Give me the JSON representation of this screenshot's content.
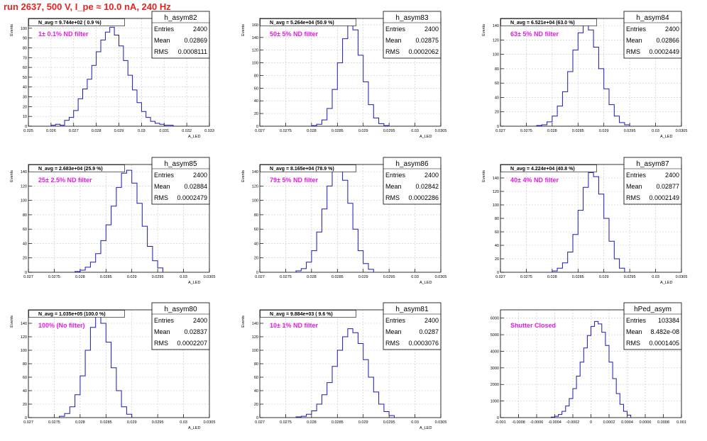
{
  "page_title": "run 2637,   500 V, I_pe ≈ 10.0 nA, 240 Hz",
  "colors": {
    "title": "#e8231f",
    "histogram": "#1a1ab3",
    "annotation": "#e51be5",
    "grid": "#c8c8c8"
  },
  "chart_data": [
    {
      "type": "histogram",
      "ylabel": "Events",
      "xlabel": "A_LED",
      "xlim": [
        0.025,
        0.033
      ],
      "ylim": [
        0,
        110
      ],
      "xticks": [
        0.025,
        0.026,
        0.027,
        0.028,
        0.029,
        0.03,
        0.031,
        0.032,
        0.033
      ],
      "xtick_labels": [
        "0.025",
        "0.026",
        "0.027",
        "0.028",
        "0.029",
        "0.03",
        "0.031",
        "0.032",
        "0.033"
      ],
      "yticks": [
        0,
        10,
        20,
        30,
        40,
        50,
        60,
        70,
        80,
        90,
        100
      ],
      "ytick_labels": [
        "0",
        "10",
        "20",
        "30",
        "40",
        "50",
        "60",
        "70",
        "80",
        "90",
        "100"
      ],
      "grid": true,
      "n_avg_label": "N_avg = 9.744e+02 ( 0.9 %)",
      "filter_label": "1± 0.1% ND filter",
      "stats": {
        "name": "h_asym82",
        "entries": "2400",
        "mean": "0.02869",
        "rms": "0.0008111"
      },
      "series": [
        {
          "x": [
            0.0261,
            0.0263,
            0.0265,
            0.0267,
            0.0269,
            0.0271,
            0.0273,
            0.0275,
            0.0277,
            0.0279,
            0.0281,
            0.0283,
            0.0285,
            0.0287,
            0.0289,
            0.0291,
            0.0293,
            0.0295,
            0.0297,
            0.0299,
            0.0301,
            0.0303,
            0.0305,
            0.0307,
            0.0309,
            0.0311,
            0.0313
          ],
          "values": [
            1,
            2,
            1,
            6,
            9,
            16,
            28,
            38,
            48,
            62,
            76,
            88,
            96,
            101,
            93,
            82,
            67,
            52,
            37,
            24,
            15,
            9,
            5,
            3,
            2,
            1,
            1
          ]
        }
      ]
    },
    {
      "type": "histogram",
      "ylabel": "Events",
      "xlabel": "A_LED",
      "xlim": [
        0.027,
        0.0305
      ],
      "ylim": [
        0,
        170
      ],
      "xticks": [
        0.027,
        0.0275,
        0.028,
        0.0285,
        0.029,
        0.0295,
        0.03,
        0.0305
      ],
      "xtick_labels": [
        "0.027",
        "0.0275",
        "0.028",
        "0.0285",
        "0.029",
        "0.0295",
        "0.03",
        "0.0305"
      ],
      "yticks": [
        0,
        20,
        40,
        60,
        80,
        100,
        120,
        140,
        160
      ],
      "ytick_labels": [
        "0",
        "20",
        "40",
        "60",
        "80",
        "100",
        "120",
        "140",
        "160"
      ],
      "grid": true,
      "n_avg_label": "N_avg = 5.264e+04 (50.9 %)",
      "filter_label": "50± 5% ND filter",
      "stats": {
        "name": "h_asym83",
        "entries": "2400",
        "mean": "0.02875",
        "rms": "0.0002062"
      },
      "series": [
        {
          "x": [
            0.02805,
            0.02815,
            0.02825,
            0.02835,
            0.02845,
            0.02855,
            0.02865,
            0.02875,
            0.02885,
            0.02895,
            0.02905,
            0.02915,
            0.02925,
            0.02935,
            0.02945
          ],
          "values": [
            1,
            3,
            10,
            28,
            58,
            100,
            138,
            160,
            152,
            112,
            70,
            34,
            13,
            4,
            1
          ]
        }
      ]
    },
    {
      "type": "histogram",
      "ylabel": "Events",
      "xlabel": "A_LED",
      "xlim": [
        0.027,
        0.0305
      ],
      "ylim": [
        0,
        150
      ],
      "xticks": [
        0.027,
        0.0275,
        0.028,
        0.0285,
        0.029,
        0.0295,
        0.03,
        0.0305
      ],
      "xtick_labels": [
        "0.027",
        "0.0275",
        "0.028",
        "0.0285",
        "0.029",
        "0.0295",
        "0.03",
        "0.0305"
      ],
      "yticks": [
        0,
        20,
        40,
        60,
        80,
        100,
        120,
        140
      ],
      "ytick_labels": [
        "0",
        "20",
        "40",
        "60",
        "80",
        "100",
        "120",
        "140"
      ],
      "grid": true,
      "n_avg_label": "N_avg = 6.521e+04 (63.0 %)",
      "filter_label": "63± 5% ND filter",
      "stats": {
        "name": "h_asym84",
        "entries": "2400",
        "mean": "0.02866",
        "rms": "0.0002449"
      },
      "series": [
        {
          "x": [
            0.02775,
            0.02785,
            0.02795,
            0.02805,
            0.02815,
            0.02825,
            0.02835,
            0.02845,
            0.02855,
            0.02865,
            0.02875,
            0.02885,
            0.02895,
            0.02905,
            0.02915,
            0.02925,
            0.02935,
            0.02945
          ],
          "values": [
            1,
            2,
            6,
            14,
            28,
            48,
            76,
            106,
            130,
            142,
            134,
            110,
            80,
            52,
            30,
            14,
            5,
            2
          ]
        }
      ]
    },
    {
      "type": "histogram",
      "ylabel": "Events",
      "xlabel": "A_LED",
      "xlim": [
        0.027,
        0.0305
      ],
      "ylim": [
        0,
        150
      ],
      "xticks": [
        0.027,
        0.0275,
        0.028,
        0.0285,
        0.029,
        0.0295,
        0.03,
        0.0305
      ],
      "xtick_labels": [
        "0.027",
        "0.0275",
        "0.028",
        "0.0285",
        "0.029",
        "0.0295",
        "0.03",
        "0.0305"
      ],
      "yticks": [
        0,
        20,
        40,
        60,
        80,
        100,
        120,
        140
      ],
      "ytick_labels": [
        "0",
        "20",
        "40",
        "60",
        "80",
        "100",
        "120",
        "140"
      ],
      "grid": true,
      "n_avg_label": "N_avg = 2.683e+04 (25.9 %)",
      "filter_label": "25± 2.5% ND filter",
      "stats": {
        "name": "h_asym85",
        "entries": "2400",
        "mean": "0.02884",
        "rms": "0.0002479"
      },
      "series": [
        {
          "x": [
            0.02795,
            0.02805,
            0.02815,
            0.02825,
            0.02835,
            0.02845,
            0.02855,
            0.02865,
            0.02875,
            0.02885,
            0.02895,
            0.02905,
            0.02915,
            0.02925,
            0.02935,
            0.02945,
            0.02955
          ],
          "values": [
            1,
            3,
            7,
            14,
            26,
            44,
            66,
            92,
            118,
            138,
            142,
            124,
            96,
            64,
            36,
            16,
            6
          ]
        }
      ]
    },
    {
      "type": "histogram",
      "ylabel": "Events",
      "xlabel": "A_LED",
      "xlim": [
        0.027,
        0.0305
      ],
      "ylim": [
        0,
        150
      ],
      "xticks": [
        0.027,
        0.0275,
        0.028,
        0.0285,
        0.029,
        0.0295,
        0.03,
        0.0305
      ],
      "xtick_labels": [
        "0.027",
        "0.0275",
        "0.028",
        "0.0285",
        "0.029",
        "0.0295",
        "0.03",
        "0.0305"
      ],
      "yticks": [
        0,
        20,
        40,
        60,
        80,
        100,
        120,
        140
      ],
      "ytick_labels": [
        "0",
        "20",
        "40",
        "60",
        "80",
        "100",
        "120",
        "140"
      ],
      "grid": true,
      "n_avg_label": "N_avg = 8.165e+04 (78.9 %)",
      "filter_label": "79± 5% ND filter",
      "stats": {
        "name": "h_asym86",
        "entries": "2400",
        "mean": "0.02842",
        "rms": "0.0002286"
      },
      "series": [
        {
          "x": [
            0.02775,
            0.02785,
            0.02795,
            0.02805,
            0.02815,
            0.02825,
            0.02835,
            0.02845,
            0.02855,
            0.02865,
            0.02875,
            0.02885,
            0.02895,
            0.02905,
            0.02915
          ],
          "values": [
            2,
            5,
            14,
            30,
            56,
            88,
            120,
            142,
            146,
            128,
            96,
            60,
            30,
            12,
            4
          ]
        }
      ]
    },
    {
      "type": "histogram",
      "ylabel": "Events",
      "xlabel": "A_LED",
      "xlim": [
        0.027,
        0.0305
      ],
      "ylim": [
        0,
        160
      ],
      "xticks": [
        0.027,
        0.0275,
        0.028,
        0.0285,
        0.029,
        0.0295,
        0.03,
        0.0305
      ],
      "xtick_labels": [
        "0.027",
        "0.0275",
        "0.028",
        "0.0285",
        "0.029",
        "0.0295",
        "0.03",
        "0.0305"
      ],
      "yticks": [
        0,
        20,
        40,
        60,
        80,
        100,
        120,
        140
      ],
      "ytick_labels": [
        "0",
        "20",
        "40",
        "60",
        "80",
        "100",
        "120",
        "140"
      ],
      "grid": true,
      "n_avg_label": "N_avg = 4.224e+04 (40.8 %)",
      "filter_label": "40± 4% ND filter",
      "stats": {
        "name": "h_asym87",
        "entries": "2400",
        "mean": "0.02877",
        "rms": "0.0002149"
      },
      "series": [
        {
          "x": [
            0.02805,
            0.02815,
            0.02825,
            0.02835,
            0.02845,
            0.02855,
            0.02865,
            0.02875,
            0.02885,
            0.02895,
            0.02905,
            0.02915,
            0.02925,
            0.02935
          ],
          "values": [
            2,
            6,
            14,
            30,
            56,
            92,
            126,
            148,
            142,
            116,
            80,
            46,
            20,
            6
          ]
        }
      ]
    },
    {
      "type": "histogram",
      "ylabel": "Events",
      "xlabel": "A_LED",
      "xlim": [
        0.027,
        0.0305
      ],
      "ylim": [
        0,
        160
      ],
      "xticks": [
        0.027,
        0.0275,
        0.028,
        0.0285,
        0.029,
        0.0295,
        0.03,
        0.0305
      ],
      "xtick_labels": [
        "0.027",
        "0.0275",
        "0.028",
        "0.0285",
        "0.029",
        "0.0295",
        "0.03",
        "0.0305"
      ],
      "yticks": [
        0,
        20,
        40,
        60,
        80,
        100,
        120,
        140
      ],
      "ytick_labels": [
        "0",
        "20",
        "40",
        "60",
        "80",
        "100",
        "120",
        "140"
      ],
      "grid": true,
      "n_avg_label": "N_avg = 1.035e+05 (100.0 %)",
      "filter_label": "100% (No filter)",
      "stats": {
        "name": "h_asym80",
        "entries": "2400",
        "mean": "0.02837",
        "rms": "0.0002207"
      },
      "series": [
        {
          "x": [
            0.02765,
            0.02775,
            0.02785,
            0.02795,
            0.02805,
            0.02815,
            0.02825,
            0.02835,
            0.02845,
            0.02855,
            0.02865,
            0.02875,
            0.02885,
            0.02895
          ],
          "values": [
            2,
            6,
            16,
            34,
            62,
            100,
            134,
            150,
            140,
            112,
            74,
            40,
            16,
            5
          ]
        }
      ]
    },
    {
      "type": "histogram",
      "ylabel": "Events",
      "xlabel": "A_LED",
      "xlim": [
        0.027,
        0.0305
      ],
      "ylim": [
        0,
        160
      ],
      "xticks": [
        0.027,
        0.0275,
        0.028,
        0.0285,
        0.029,
        0.0295,
        0.03,
        0.0305
      ],
      "xtick_labels": [
        "0.027",
        "0.0275",
        "0.028",
        "0.0285",
        "0.029",
        "0.0295",
        "0.03",
        "0.0305"
      ],
      "yticks": [
        0,
        20,
        40,
        60,
        80,
        100,
        120,
        140
      ],
      "ytick_labels": [
        "0",
        "20",
        "40",
        "60",
        "80",
        "100",
        "120",
        "140"
      ],
      "grid": true,
      "n_avg_label": "N_avg = 9.884e+03 ( 9.6 %)",
      "filter_label": "10± 1% ND filter",
      "stats": {
        "name": "h_asym81",
        "entries": "2400",
        "mean": "0.0287",
        "rms": "0.0003076"
      },
      "series": [
        {
          "x": [
            0.02775,
            0.02785,
            0.02795,
            0.02805,
            0.02815,
            0.02825,
            0.02835,
            0.02845,
            0.02855,
            0.02865,
            0.02875,
            0.02885,
            0.02895,
            0.02905,
            0.02915,
            0.02925,
            0.02935,
            0.02945,
            0.02955
          ],
          "values": [
            1,
            2,
            5,
            10,
            20,
            34,
            52,
            76,
            100,
            120,
            132,
            126,
            110,
            86,
            60,
            38,
            20,
            9,
            3
          ]
        }
      ]
    },
    {
      "type": "histogram",
      "ylabel": "",
      "xlabel": "",
      "xlim": [
        -0.001,
        0.001
      ],
      "ylim": [
        0,
        6500
      ],
      "xticks": [
        -0.001,
        -0.0008,
        -0.0006,
        -0.0004,
        -0.0002,
        0,
        0.0002,
        0.0004,
        0.0006,
        0.0008,
        0.001
      ],
      "xtick_labels": [
        "-0.001",
        "-0.0008",
        "-0.0006",
        "-0.0004",
        "-0.0002",
        "0",
        "0.0002",
        "0.0004",
        "0.0006",
        "0.0008",
        "0.001"
      ],
      "yticks": [
        0,
        1000,
        2000,
        3000,
        4000,
        5000,
        6000
      ],
      "ytick_labels": [
        "0",
        "1000",
        "2000",
        "3000",
        "4000",
        "5000",
        "6000"
      ],
      "grid": true,
      "n_avg_label": "",
      "filter_label": "Shutter Closed",
      "stats": {
        "name": "hPed_asym",
        "entries": "103384",
        "mean": "8.482e-08",
        "rms": "0.0001405"
      },
      "series": [
        {
          "x": [
            -0.00042,
            -0.00038,
            -0.00034,
            -0.0003,
            -0.00026,
            -0.00022,
            -0.00018,
            -0.00014,
            -0.0001,
            -6e-05,
            -2e-05,
            2e-05,
            6e-05,
            0.0001,
            0.00014,
            0.00018,
            0.00022,
            0.00026,
            0.0003,
            0.00034,
            0.00038,
            0.00042
          ],
          "values": [
            30,
            80,
            190,
            380,
            700,
            1150,
            1750,
            2500,
            3350,
            4200,
            4950,
            5500,
            5800,
            5650,
            5150,
            4350,
            3350,
            2350,
            1450,
            800,
            380,
            150
          ]
        }
      ]
    }
  ]
}
